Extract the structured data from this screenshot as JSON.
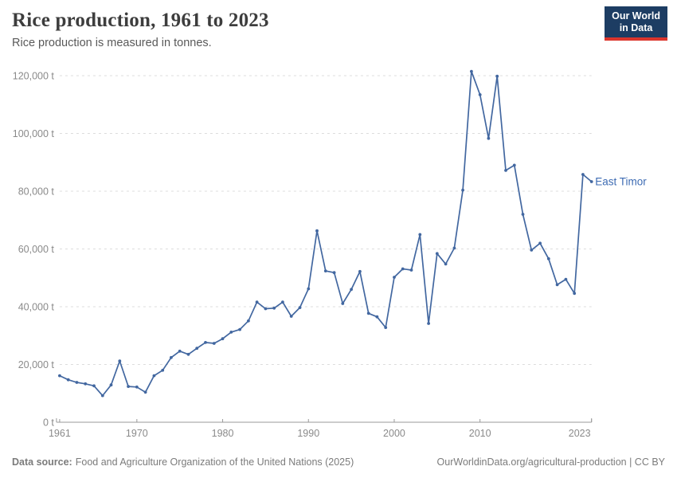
{
  "header": {
    "title": "Rice production, 1961 to 2023",
    "subtitle": "Rice production is measured in tonnes."
  },
  "logo": {
    "line1": "Our World",
    "line2": "in Data"
  },
  "footer": {
    "source_label": "Data source:",
    "source_text": "Food and Agriculture Organization of the United Nations (2025)",
    "link_text": "OurWorldinData.org/agricultural-production | CC BY"
  },
  "colors": {
    "line": "#4267a0",
    "entity_label": "#3d6bb3",
    "grid": "#dcdcdc",
    "axis_line": "#999999",
    "axis_text": "#8a8a8a",
    "logo_bg": "#1d3d63",
    "logo_red": "#dc352c"
  },
  "chart_data": {
    "type": "line",
    "title": "Rice production, 1961 to 2023",
    "entity": "East Timor",
    "unit": "t",
    "xlim": [
      1961,
      2023
    ],
    "ylim": [
      0,
      120000
    ],
    "grid": true,
    "legend_position": "end-of-line",
    "x_ticks": [
      {
        "value": 1961,
        "label": "1961"
      },
      {
        "value": 1970,
        "label": "1970"
      },
      {
        "value": 1980,
        "label": "1980"
      },
      {
        "value": 1990,
        "label": "1990"
      },
      {
        "value": 2000,
        "label": "2000"
      },
      {
        "value": 2010,
        "label": "2010"
      },
      {
        "value": 2023,
        "label": "2023"
      }
    ],
    "y_ticks": [
      {
        "value": 0,
        "label": "0 t"
      },
      {
        "value": 20000,
        "label": "20,000 t"
      },
      {
        "value": 40000,
        "label": "40,000 t"
      },
      {
        "value": 60000,
        "label": "60,000 t"
      },
      {
        "value": 80000,
        "label": "80,000 t"
      },
      {
        "value": 100000,
        "label": "100,000 t"
      },
      {
        "value": 120000,
        "label": "120,000 t"
      }
    ],
    "x_start": 1961,
    "x_end": 2023,
    "values": [
      16100,
      14700,
      13800,
      13300,
      12600,
      9200,
      12900,
      21200,
      12400,
      12200,
      10400,
      16100,
      18000,
      22400,
      24600,
      23500,
      25600,
      27600,
      27300,
      28900,
      31200,
      32100,
      35100,
      41600,
      39300,
      39500,
      41600,
      36700,
      39700,
      46200,
      66300,
      52400,
      51800,
      41100,
      46000,
      52200,
      37700,
      36500,
      32800,
      50200,
      53100,
      52700,
      65000,
      34200,
      58400,
      54800,
      60300,
      80400,
      121500,
      113400,
      98300,
      119800,
      87200,
      89000,
      72000,
      59600,
      62000,
      56600,
      47600,
      49500,
      44600,
      85800,
      83300
    ]
  }
}
